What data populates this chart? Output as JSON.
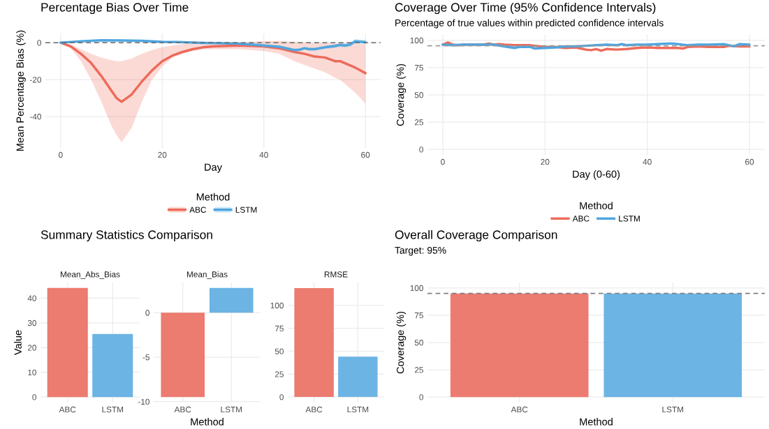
{
  "chart_data": [
    {
      "type": "line",
      "title": "Percentage Bias Over Time",
      "xlabel": "Day",
      "ylabel": "Mean Percentage Bias (%)",
      "legend_title": "Method",
      "legend": "bottom",
      "grid": true,
      "xlim": [
        -3,
        63
      ],
      "xticks": [
        0,
        20,
        40,
        60
      ],
      "ylim": [
        -57,
        5
      ],
      "yticks": [
        -40,
        -20,
        0
      ],
      "ref_lines": [
        {
          "axis": "y",
          "value": 0,
          "color": "#666666",
          "line_style": "dashed"
        }
      ],
      "series": [
        {
          "name": "ABC",
          "color": "#ee6a5a",
          "x": [
            0,
            2,
            4,
            6,
            8,
            10,
            11,
            12,
            14,
            16,
            18,
            20,
            22,
            24,
            26,
            28,
            30,
            35,
            40,
            43,
            46,
            48,
            50,
            52,
            54,
            55,
            58,
            60
          ],
          "values": [
            0,
            -2,
            -6,
            -11,
            -18,
            -26,
            -30,
            -32,
            -28,
            -21,
            -15,
            -10,
            -7,
            -5,
            -3.5,
            -2.5,
            -2,
            -1.5,
            -2,
            -3,
            -5,
            -6,
            -7.5,
            -8,
            -10,
            -10,
            -13.5,
            -16.5
          ],
          "lower": [
            0,
            -3,
            -10,
            -20,
            -32,
            -45,
            -50,
            -54,
            -46,
            -32,
            -20,
            -13,
            -8,
            -6,
            -4.5,
            -3.5,
            -3.5,
            -3.5,
            -4.5,
            -6,
            -10,
            -12,
            -14,
            -16,
            -19,
            -20,
            -27,
            -33
          ],
          "upper": [
            0,
            -1,
            -3.5,
            -6,
            -8,
            -9.5,
            -10,
            -10,
            -8.5,
            -6,
            -4,
            -2.5,
            -1.5,
            -0.8,
            -0.5,
            -0.3,
            -0.3,
            0,
            0.8,
            1,
            0.5,
            0,
            -0.3,
            0,
            -0.3,
            -0.3,
            -0.5,
            -1
          ]
        },
        {
          "name": "LSTM",
          "color": "#4ea6e0",
          "x": [
            0,
            4,
            8,
            12,
            16,
            20,
            24,
            28,
            30,
            35,
            40,
            43,
            46,
            47,
            48,
            49,
            50,
            52,
            54,
            55,
            56,
            57,
            58,
            60
          ],
          "values": [
            0,
            0.8,
            1.3,
            1.2,
            1,
            0.5,
            0.3,
            -0.1,
            -0.2,
            -0.5,
            -1.5,
            -2.2,
            -4,
            -3.8,
            -3,
            -3.5,
            -3.5,
            -2.5,
            -1.8,
            -1.2,
            -1.5,
            -1,
            0.8,
            0.3
          ],
          "lower": [
            0,
            0.5,
            1,
            0.9,
            0.7,
            0.2,
            0,
            -0.4,
            -0.5,
            -0.8,
            -1.9,
            -2.7,
            -4.7,
            -4.5,
            -3.8,
            -4.3,
            -4.3,
            -3.4,
            -2.8,
            -2.2,
            -2.6,
            -2.1,
            -0.4,
            -0.9
          ],
          "upper": [
            0,
            1.1,
            1.6,
            1.5,
            1.3,
            0.8,
            0.6,
            0.2,
            0.1,
            -0.2,
            -1.1,
            -1.7,
            -3.3,
            -3.1,
            -2.2,
            -2.7,
            -2.7,
            -1.6,
            -0.8,
            -0.2,
            -0.4,
            0.1,
            2,
            1.5
          ]
        }
      ]
    },
    {
      "type": "line",
      "title": "Coverage Over Time (95% Confidence Intervals)",
      "subtitle": "Percentage of true values within predicted confidence intervals",
      "xlabel": "Day (0-60)",
      "ylabel": "Coverage (%)",
      "legend_title": "Method",
      "legend": "bottom",
      "grid": true,
      "xlim": [
        -3,
        63
      ],
      "xticks": [
        0,
        20,
        40,
        60
      ],
      "ylim": [
        -5,
        105
      ],
      "yticks": [
        0,
        25,
        50,
        75,
        100
      ],
      "ref_lines": [
        {
          "axis": "y",
          "value": 95,
          "color": "#999999",
          "line_style": "dashed"
        }
      ],
      "series": [
        {
          "name": "ABC",
          "color": "#ee6a5a",
          "x": [
            0,
            1,
            2,
            3,
            4,
            6,
            8,
            9,
            10,
            11,
            12,
            14,
            16,
            17,
            18,
            20,
            22,
            24,
            26,
            27,
            28,
            29,
            30,
            31,
            32,
            34,
            36,
            38,
            40,
            42,
            44,
            46,
            47,
            48,
            50,
            52,
            54,
            55,
            56,
            58,
            60
          ],
          "values": [
            96,
            98,
            96,
            95.5,
            96,
            96,
            96,
            97,
            96,
            96.5,
            96,
            95.5,
            95.5,
            95.5,
            95,
            94,
            94,
            93,
            93.5,
            92.5,
            91.5,
            91,
            92,
            90.5,
            92,
            91.5,
            92,
            93,
            93.5,
            93,
            93,
            93,
            92.5,
            94,
            94.5,
            94,
            94,
            94,
            95,
            94.5,
            94.5
          ]
        },
        {
          "name": "LSTM",
          "color": "#4ea6e0",
          "x": [
            0,
            2,
            4,
            6,
            8,
            10,
            12,
            14,
            15,
            17,
            18,
            20,
            22,
            24,
            26,
            28,
            30,
            32,
            34,
            35,
            36,
            38,
            40,
            42,
            44,
            45,
            46,
            48,
            50,
            52,
            55,
            56,
            57,
            58,
            60
          ],
          "values": [
            96,
            95.5,
            96,
            96,
            96,
            96,
            94.5,
            93,
            94,
            94,
            92.5,
            93,
            93.5,
            94.5,
            94.5,
            95,
            95.5,
            96,
            95.5,
            96.5,
            95.5,
            96,
            96,
            96.5,
            97,
            97,
            96.5,
            95.5,
            96,
            96,
            96.5,
            95.5,
            94.5,
            96.5,
            96
          ]
        }
      ]
    },
    {
      "type": "bar",
      "title": "Summary Statistics Comparison",
      "subtitle": "Mean_Abs_Bias",
      "ylabel": "Value",
      "grid": true,
      "categories": [
        "ABC",
        "LSTM"
      ],
      "values": [
        44.1,
        25.5
      ],
      "colors": [
        "#ec7b70",
        "#6cb4e3"
      ],
      "ylim": [
        -2.2,
        46.3
      ],
      "yticks": [
        0,
        10,
        20,
        30,
        40
      ]
    },
    {
      "type": "bar",
      "subtitle": "Mean_Bias",
      "xlabel": "Method",
      "grid": true,
      "categories": [
        "ABC",
        "LSTM"
      ],
      "values": [
        -9.5,
        2.8
      ],
      "colors": [
        "#ec7b70",
        "#6cb4e3"
      ],
      "ylim": [
        -10.1,
        3.4
      ],
      "yticks": [
        -10,
        -5,
        0
      ]
    },
    {
      "type": "bar",
      "subtitle": "RMSE",
      "grid": true,
      "categories": [
        "ABC",
        "LSTM"
      ],
      "values": [
        119,
        44
      ],
      "colors": [
        "#ec7b70",
        "#6cb4e3"
      ],
      "ylim": [
        -6,
        125
      ],
      "yticks": [
        0,
        25,
        50,
        75,
        100
      ]
    },
    {
      "type": "bar",
      "title": "Overall Coverage Comparison",
      "subtitle": "Target: 95%",
      "xlabel": "Method",
      "ylabel": "Coverage (%)",
      "grid": true,
      "categories": [
        "ABC",
        "LSTM"
      ],
      "values": [
        95,
        95
      ],
      "colors": [
        "#ec7b70",
        "#6cb4e3"
      ],
      "ylim": [
        -5,
        105
      ],
      "yticks": [
        0,
        25,
        50,
        75,
        100
      ],
      "ref_lines": [
        {
          "axis": "y",
          "value": 95,
          "color": "#808080",
          "line_style": "dashed"
        }
      ]
    }
  ]
}
